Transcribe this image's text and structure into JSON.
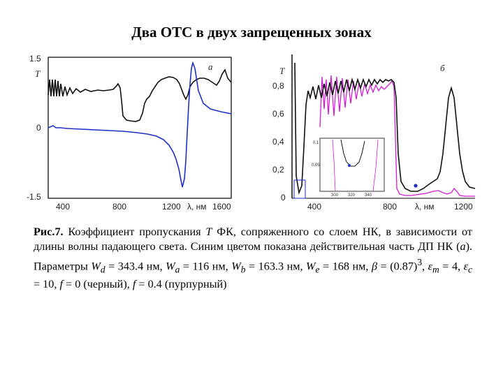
{
  "slide": {
    "title": "Два ОТС в двух запрещенных зонах"
  },
  "panel_a": {
    "tag": "a",
    "y_axis_symbol": "T",
    "x_axis_unit": "λ, нм",
    "colors": {
      "black_curve": "#111111",
      "blue_curve": "#1f2fc8"
    },
    "chart_data": {
      "type": "line",
      "ylim": [
        -1.5,
        1.5
      ],
      "xlim": [
        320,
        1600
      ],
      "y_ticks": [
        "1.5",
        "0",
        "-1.5"
      ],
      "x_ticks": [
        "400",
        "800",
        "1200",
        "1600"
      ],
      "series": []
    }
  },
  "panel_b": {
    "tag": "б",
    "y_axis_symbol": "T",
    "x_axis_unit": "λ, нм",
    "colors": {
      "black_curve": "#111111",
      "magenta_curve": "#d21ed2",
      "marker": "#1f2fc8"
    },
    "chart_data": {
      "type": "line",
      "ylim": [
        0,
        1.0
      ],
      "xlim": [
        330,
        1200
      ],
      "y_ticks": [
        "0,8",
        "0,6",
        "0,4",
        "0,2",
        "0"
      ],
      "x_ticks": [
        "400",
        "800",
        "1200"
      ],
      "series": []
    },
    "inset": {
      "y_ticks": [
        "0,1",
        "0,05"
      ],
      "x_ticks": [
        "300",
        "320",
        "340"
      ]
    }
  },
  "caption": {
    "label": "Рис.7.",
    "text_1": " Коэффициент пропускания ",
    "sym_T": "T",
    "text_2": " ФК, сопряженного со слоем НК, в зависимости от длины волны падающего света. Синим цветом показана действительная часть ДП НК (",
    "sym_a": "a",
    "text_3": "). Параметры ",
    "Wd_sym": "W",
    "Wd_sub": "d",
    "Wd_val": " = 343.4 нм, ",
    "Wa_sym": "W",
    "Wa_sub": "a",
    "Wa_val": " = 116 нм, ",
    "Wb_sym": "W",
    "Wb_sub": "b",
    "Wb_val": " = 163.3 нм, ",
    "We_sym": "W",
    "We_sub": "e",
    "We_val": " = 168 нм, ",
    "beta_sym": "β",
    "beta_val": " = (0.87)",
    "beta_sup": "3",
    "beta_sep": ", ",
    "em_sym": "ε",
    "em_sub": "m",
    "em_val": " = 4, ",
    "ec_sym": "ε",
    "ec_sub": "c",
    "ec_val": " = 10, ",
    "f1_sym": "f",
    "f1_val": " = 0 (черный), ",
    "f2_sym": "f",
    "f2_val": " = 0.4 (пурпурный)"
  }
}
